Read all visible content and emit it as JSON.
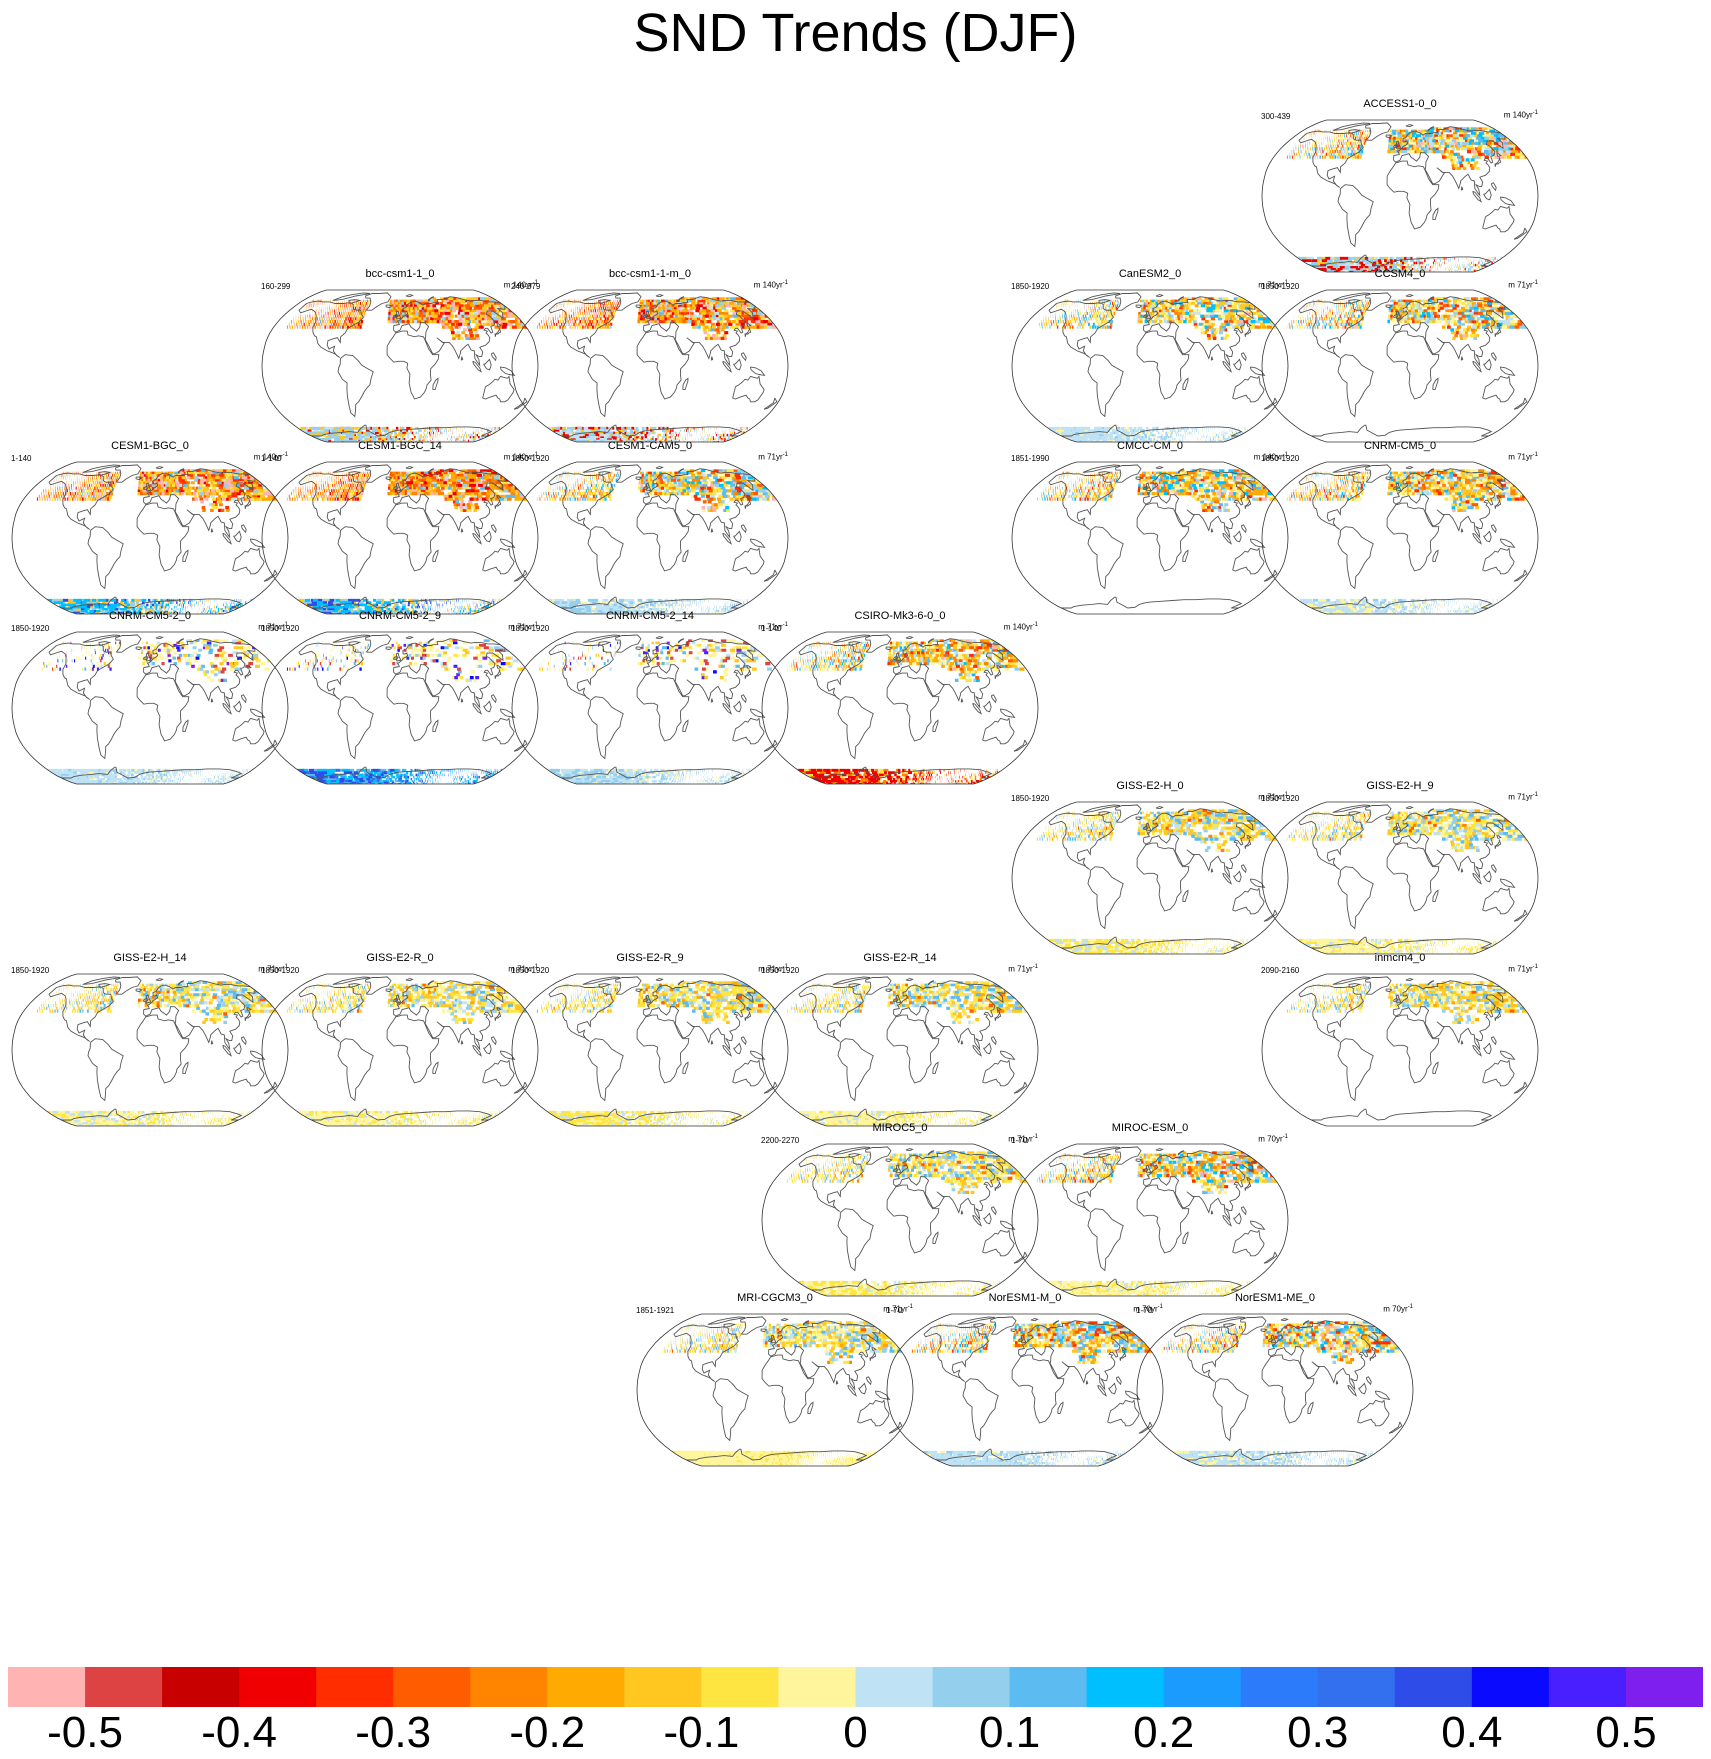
{
  "chart_data": {
    "type": "heatmap",
    "title": "SND Trends (DJF)",
    "projection": "robinson",
    "colorbar": {
      "colors": [
        "#ffb3b3",
        "#de4343",
        "#c80000",
        "#f00000",
        "#ff2d00",
        "#ff5c00",
        "#ff8500",
        "#ffaa00",
        "#ffc71f",
        "#ffe542",
        "#fff59c",
        "#bfe3f5",
        "#94cfee",
        "#5cbcf2",
        "#00bfff",
        "#1c9bff",
        "#2b7bfa",
        "#3370ed",
        "#2e4de8",
        "#0a0aff",
        "#4a1fff",
        "#7f1fed"
      ],
      "tick_labels": [
        "-0.5",
        "-0.4",
        "-0.3",
        "-0.2",
        "-0.1",
        "0",
        "0.1",
        "0.2",
        "0.3",
        "0.4",
        "0.5"
      ],
      "range": [
        -0.55,
        0.55
      ]
    },
    "panels": [
      {
        "model": "ACCESS1-0_0",
        "period": "300-439",
        "units_prefix": "m 140yr",
        "units_exp": "-1",
        "row": 0,
        "col": 5,
        "pattern": "warm",
        "intensity": 0.85,
        "antarctic": "mixed"
      },
      {
        "model": "bcc-csm1-1_0",
        "period": "160-299",
        "units_prefix": "m 140yr",
        "units_exp": "-1",
        "row": 1,
        "col": 1,
        "pattern": "strong_warm",
        "intensity": 1.0,
        "antarctic": "mixed"
      },
      {
        "model": "bcc-csm1-1-m_0",
        "period": "240-379",
        "units_prefix": "m 140yr",
        "units_exp": "-1",
        "row": 1,
        "col": 2,
        "pattern": "strong_warm",
        "intensity": 0.95,
        "antarctic": "mixed"
      },
      {
        "model": "CanESM2_0",
        "period": "1850-1920",
        "units_prefix": "m 71yr",
        "units_exp": "-1",
        "row": 1,
        "col": 4,
        "pattern": "warm",
        "intensity": 0.55,
        "antarctic": "cool_light"
      },
      {
        "model": "CCSM4_0",
        "period": "1850-1920",
        "units_prefix": "m 71yr",
        "units_exp": "-1",
        "row": 1,
        "col": 5,
        "pattern": "warm",
        "intensity": 0.7,
        "antarctic": "none"
      },
      {
        "model": "CESM1-BGC_0",
        "period": "1-140",
        "units_prefix": "m 140yr",
        "units_exp": "-1",
        "row": 2,
        "col": 0,
        "pattern": "strong_warm",
        "intensity": 0.95,
        "antarctic": "cool_mixed"
      },
      {
        "model": "CESM1-BGC_14",
        "period": "1-140",
        "units_prefix": "m 140yr",
        "units_exp": "-1",
        "row": 2,
        "col": 1,
        "pattern": "strong_warm",
        "intensity": 0.95,
        "antarctic": "cool_mixed"
      },
      {
        "model": "CESM1-CAM5_0",
        "period": "1850-1920",
        "units_prefix": "m 71yr",
        "units_exp": "-1",
        "row": 2,
        "col": 2,
        "pattern": "warm",
        "intensity": 0.7,
        "antarctic": "cool_light"
      },
      {
        "model": "CMCC-CM_0",
        "period": "1851-1990",
        "units_prefix": "m 140yr",
        "units_exp": "-1",
        "row": 2,
        "col": 4,
        "pattern": "warm",
        "intensity": 0.75,
        "antarctic": "none"
      },
      {
        "model": "CNRM-CM5_0",
        "period": "1850-1920",
        "units_prefix": "m 71yr",
        "units_exp": "-1",
        "row": 2,
        "col": 5,
        "pattern": "warm",
        "intensity": 0.7,
        "antarctic": "cool_light"
      },
      {
        "model": "CNRM-CM5-2_0",
        "period": "1850-1920",
        "units_prefix": "m 71yr",
        "units_exp": "-1",
        "row": 3,
        "col": 0,
        "pattern": "sparse",
        "intensity": 0.4,
        "antarctic": "cool_light"
      },
      {
        "model": "CNRM-CM5-2_9",
        "period": "1850-1920",
        "units_prefix": "m 71yr",
        "units_exp": "-1",
        "row": 3,
        "col": 1,
        "pattern": "sparse",
        "intensity": 0.45,
        "antarctic": "cool_strong"
      },
      {
        "model": "CNRM-CM5-2_14",
        "period": "1850-1920",
        "units_prefix": "m 71yr",
        "units_exp": "-1",
        "row": 3,
        "col": 2,
        "pattern": "sparse",
        "intensity": 0.4,
        "antarctic": "cool_light"
      },
      {
        "model": "CSIRO-Mk3-6-0_0",
        "period": "1-140",
        "units_prefix": "m 140yr",
        "units_exp": "-1",
        "row": 3,
        "col": 3,
        "pattern": "warm",
        "intensity": 0.6,
        "antarctic": "warm_edge"
      },
      {
        "model": "GISS-E2-H_0",
        "period": "1850-1920",
        "units_prefix": "m 71yr",
        "units_exp": "-1",
        "row": 4,
        "col": 4,
        "pattern": "yellow",
        "intensity": 0.5,
        "antarctic": "yellow"
      },
      {
        "model": "GISS-E2-H_9",
        "period": "1850-1920",
        "units_prefix": "m 71yr",
        "units_exp": "-1",
        "row": 4,
        "col": 5,
        "pattern": "yellow",
        "intensity": 0.5,
        "antarctic": "yellow"
      },
      {
        "model": "GISS-E2-H_14",
        "period": "1850-1920",
        "units_prefix": "m 71yr",
        "units_exp": "-1",
        "row": 5,
        "col": 0,
        "pattern": "yellow",
        "intensity": 0.5,
        "antarctic": "yellow"
      },
      {
        "model": "GISS-E2-R_0",
        "period": "1850-1920",
        "units_prefix": "m 71yr",
        "units_exp": "-1",
        "row": 5,
        "col": 1,
        "pattern": "yellow",
        "intensity": 0.45,
        "antarctic": "yellow"
      },
      {
        "model": "GISS-E2-R_9",
        "period": "1850-1920",
        "units_prefix": "m 71yr",
        "units_exp": "-1",
        "row": 5,
        "col": 2,
        "pattern": "yellow",
        "intensity": 0.45,
        "antarctic": "yellow"
      },
      {
        "model": "GISS-E2-R_14",
        "period": "1850-1920",
        "units_prefix": "m 71yr",
        "units_exp": "-1",
        "row": 5,
        "col": 3,
        "pattern": "yellow",
        "intensity": 0.45,
        "antarctic": "yellow"
      },
      {
        "model": "inmcm4_0",
        "period": "2090-2160",
        "units_prefix": "m 71yr",
        "units_exp": "-1",
        "row": 5,
        "col": 5,
        "pattern": "yellow",
        "intensity": 0.5,
        "antarctic": "none"
      },
      {
        "model": "MIROC5_0",
        "period": "2200-2270",
        "units_prefix": "m 71yr",
        "units_exp": "-1",
        "row": 6,
        "col": 3,
        "pattern": "yellow",
        "intensity": 0.5,
        "antarctic": "yellow"
      },
      {
        "model": "MIROC-ESM_0",
        "period": "1-70",
        "units_prefix": "m 70yr",
        "units_exp": "-1",
        "row": 6,
        "col": 4,
        "pattern": "warm",
        "intensity": 0.6,
        "antarctic": "yellow"
      },
      {
        "model": "MRI-CGCM3_0",
        "period": "1851-1921",
        "units_prefix": "m 71yr",
        "units_exp": "-1",
        "row": 7,
        "col": 2.5,
        "pattern": "yellow",
        "intensity": 0.5,
        "antarctic": "yellow_full"
      },
      {
        "model": "NorESM1-M_0",
        "period": "1-70",
        "units_prefix": "m 70yr",
        "units_exp": "-1",
        "row": 7,
        "col": 3.5,
        "pattern": "warm",
        "intensity": 0.7,
        "antarctic": "cool_light"
      },
      {
        "model": "NorESM1-ME_0",
        "period": "1-70",
        "units_prefix": "m 70yr",
        "units_exp": "-1",
        "row": 7,
        "col": 4.5,
        "pattern": "warm",
        "intensity": 0.7,
        "antarctic": "cool_light"
      }
    ]
  }
}
